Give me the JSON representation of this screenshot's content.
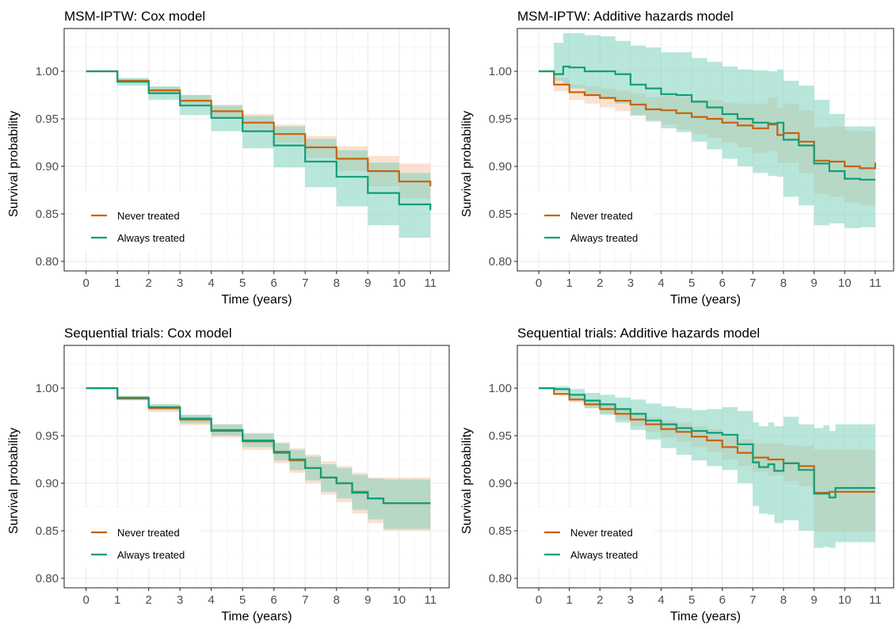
{
  "colors": {
    "never": "#C8620C",
    "always": "#0E9E78",
    "never_band": "#F6C9AC",
    "always_band": "#7FD1BC"
  },
  "chart_data": [
    {
      "type": "line",
      "title": "MSM-IPTW: Cox model",
      "xlabel": "Time (years)",
      "ylabel": "Survival probability",
      "xlim": [
        0,
        11
      ],
      "ylim": [
        0.8,
        1.0
      ],
      "x_ticks": [
        0,
        1,
        2,
        3,
        4,
        5,
        6,
        7,
        8,
        9,
        10,
        11
      ],
      "y_ticks": [
        0.8,
        0.85,
        0.9,
        0.95,
        1.0
      ],
      "y_tick_labels": [
        "0.80",
        "0.85",
        "0.90",
        "0.95",
        "1.00"
      ],
      "grid": true,
      "legend_position": "bottom-left",
      "series": [
        {
          "name": "Never treated",
          "color": "#C8620C",
          "x": [
            0,
            1,
            2,
            3,
            4,
            5,
            6,
            7,
            8,
            9,
            10,
            11
          ],
          "y": [
            1.0,
            0.99,
            0.98,
            0.969,
            0.958,
            0.946,
            0.934,
            0.92,
            0.908,
            0.895,
            0.884,
            0.879
          ],
          "lower": [
            1.0,
            0.988,
            0.977,
            0.964,
            0.952,
            0.939,
            0.925,
            0.909,
            0.895,
            0.879,
            0.866,
            0.857
          ],
          "upper": [
            1.0,
            0.992,
            0.984,
            0.975,
            0.965,
            0.955,
            0.944,
            0.932,
            0.921,
            0.911,
            0.903,
            0.898
          ]
        },
        {
          "name": "Always treated",
          "color": "#0E9E78",
          "x": [
            0,
            1,
            2,
            3,
            4,
            5,
            6,
            7,
            8,
            9,
            10,
            11
          ],
          "y": [
            1.0,
            0.989,
            0.977,
            0.964,
            0.951,
            0.937,
            0.922,
            0.905,
            0.889,
            0.872,
            0.86,
            0.854
          ],
          "lower": [
            1.0,
            0.985,
            0.97,
            0.954,
            0.937,
            0.919,
            0.899,
            0.878,
            0.858,
            0.838,
            0.825,
            0.817
          ],
          "upper": [
            1.0,
            0.993,
            0.984,
            0.975,
            0.964,
            0.953,
            0.942,
            0.929,
            0.917,
            0.904,
            0.893,
            0.888
          ]
        }
      ]
    },
    {
      "type": "line",
      "title": "MSM-IPTW: Additive hazards model",
      "xlabel": "Time (years)",
      "ylabel": "Survival probability",
      "xlim": [
        0,
        11
      ],
      "ylim": [
        0.8,
        1.0
      ],
      "x_ticks": [
        0,
        1,
        2,
        3,
        4,
        5,
        6,
        7,
        8,
        9,
        10,
        11
      ],
      "y_ticks": [
        0.8,
        0.85,
        0.9,
        0.95,
        1.0
      ],
      "y_tick_labels": [
        "0.80",
        "0.85",
        "0.90",
        "0.95",
        "1.00"
      ],
      "grid": true,
      "legend_position": "bottom-left",
      "series": [
        {
          "name": "Never treated",
          "color": "#C8620C",
          "x": [
            0,
            0.5,
            1,
            1.5,
            2,
            2.5,
            3,
            3.5,
            4,
            4.5,
            5,
            5.5,
            6,
            6.5,
            7,
            7.5,
            7.8,
            8,
            8.5,
            9,
            9.5,
            10,
            10.5,
            11
          ],
          "y": [
            1.0,
            0.986,
            0.978,
            0.975,
            0.972,
            0.969,
            0.965,
            0.96,
            0.959,
            0.956,
            0.952,
            0.95,
            0.946,
            0.943,
            0.94,
            0.944,
            0.933,
            0.935,
            0.926,
            0.906,
            0.905,
            0.9,
            0.898,
            0.904
          ],
          "lower": [
            1.0,
            0.979,
            0.97,
            0.966,
            0.962,
            0.958,
            0.953,
            0.947,
            0.944,
            0.939,
            0.934,
            0.93,
            0.925,
            0.92,
            0.914,
            0.916,
            0.904,
            0.904,
            0.893,
            0.871,
            0.868,
            0.862,
            0.859,
            0.86
          ],
          "upper": [
            1.0,
            0.993,
            0.986,
            0.984,
            0.982,
            0.98,
            0.977,
            0.973,
            0.974,
            0.973,
            0.97,
            0.97,
            0.967,
            0.966,
            0.966,
            0.972,
            0.962,
            0.966,
            0.959,
            0.941,
            0.942,
            0.938,
            0.937,
            0.948
          ]
        },
        {
          "name": "Always treated",
          "color": "#0E9E78",
          "x": [
            0,
            0.5,
            0.8,
            1,
            1.5,
            2,
            2.5,
            3,
            3.5,
            4,
            4.5,
            5,
            5.5,
            6,
            6.5,
            7,
            7.5,
            7.8,
            8,
            8.5,
            9,
            9.5,
            10,
            10.5,
            11
          ],
          "y": [
            1.0,
            0.997,
            1.005,
            1.004,
            1.0,
            1.0,
            0.997,
            0.986,
            0.982,
            0.976,
            0.975,
            0.968,
            0.962,
            0.955,
            0.95,
            0.946,
            0.945,
            0.946,
            0.928,
            0.922,
            0.903,
            0.895,
            0.887,
            0.886,
            0.886
          ],
          "lower": [
            1.0,
            0.99,
            0.985,
            0.982,
            0.976,
            0.972,
            0.966,
            0.954,
            0.948,
            0.94,
            0.936,
            0.926,
            0.918,
            0.908,
            0.9,
            0.893,
            0.89,
            0.889,
            0.868,
            0.859,
            0.838,
            0.84,
            0.835,
            0.836,
            0.836
          ],
          "upper": [
            1.0,
            1.03,
            1.04,
            1.04,
            1.038,
            1.037,
            1.032,
            1.027,
            1.025,
            1.02,
            1.02,
            1.014,
            1.01,
            1.005,
            1.002,
            1.001,
            1.0,
            1.002,
            0.99,
            0.985,
            0.97,
            0.955,
            0.942,
            0.942,
            0.946
          ]
        }
      ]
    },
    {
      "type": "line",
      "title": "Sequential trials: Cox model",
      "xlabel": "Time (years)",
      "ylabel": "Survival probability",
      "xlim": [
        0,
        11
      ],
      "ylim": [
        0.8,
        1.0
      ],
      "x_ticks": [
        0,
        1,
        2,
        3,
        4,
        5,
        6,
        7,
        8,
        9,
        10,
        11
      ],
      "y_ticks": [
        0.8,
        0.85,
        0.9,
        0.95,
        1.0
      ],
      "y_tick_labels": [
        "0.80",
        "0.85",
        "0.90",
        "0.95",
        "1.00"
      ],
      "grid": true,
      "legend_position": "bottom-left",
      "series": [
        {
          "name": "Never treated",
          "color": "#C8620C",
          "x": [
            0,
            1,
            2,
            3,
            4,
            5,
            6,
            6.5,
            7,
            7.5,
            8,
            8.5,
            9,
            9.5,
            10,
            11
          ],
          "y": [
            1.0,
            0.989,
            0.979,
            0.967,
            0.955,
            0.944,
            0.932,
            0.924,
            0.916,
            0.906,
            0.9,
            0.891,
            0.884,
            0.879,
            0.879,
            0.879
          ],
          "lower": [
            1.0,
            0.987,
            0.975,
            0.961,
            0.948,
            0.935,
            0.921,
            0.911,
            0.9,
            0.888,
            0.88,
            0.868,
            0.858,
            0.85,
            0.85,
            0.85
          ],
          "upper": [
            1.0,
            0.991,
            0.983,
            0.972,
            0.962,
            0.953,
            0.943,
            0.937,
            0.93,
            0.923,
            0.918,
            0.911,
            0.906,
            0.906,
            0.906,
            0.906
          ]
        },
        {
          "name": "Always treated",
          "color": "#0E9E78",
          "x": [
            0,
            1,
            2,
            3,
            4,
            5,
            6,
            6.5,
            7,
            7.5,
            8,
            8.5,
            9,
            9.5,
            10,
            11
          ],
          "y": [
            1.0,
            0.99,
            0.98,
            0.968,
            0.956,
            0.945,
            0.933,
            0.925,
            0.916,
            0.906,
            0.9,
            0.89,
            0.884,
            0.879,
            0.879,
            0.879
          ],
          "lower": [
            1.0,
            0.988,
            0.977,
            0.963,
            0.95,
            0.938,
            0.924,
            0.914,
            0.903,
            0.891,
            0.884,
            0.872,
            0.862,
            0.852,
            0.852,
            0.852
          ],
          "upper": [
            1.0,
            0.992,
            0.983,
            0.972,
            0.962,
            0.952,
            0.942,
            0.935,
            0.928,
            0.92,
            0.916,
            0.909,
            0.905,
            0.904,
            0.904,
            0.904
          ]
        }
      ]
    },
    {
      "type": "line",
      "title": "Sequential trials: Additive hazards model",
      "xlabel": "Time (years)",
      "ylabel": "Survival probability",
      "xlim": [
        0,
        11
      ],
      "ylim": [
        0.8,
        1.0
      ],
      "x_ticks": [
        0,
        1,
        2,
        3,
        4,
        5,
        6,
        7,
        8,
        9,
        10,
        11
      ],
      "y_ticks": [
        0.8,
        0.85,
        0.9,
        0.95,
        1.0
      ],
      "y_tick_labels": [
        "0.80",
        "0.85",
        "0.90",
        "0.95",
        "1.00"
      ],
      "grid": true,
      "legend_position": "bottom-left",
      "series": [
        {
          "name": "Never treated",
          "color": "#C8620C",
          "x": [
            0,
            0.5,
            1,
            1.5,
            2,
            2.5,
            3,
            3.5,
            4,
            4.5,
            5,
            5.5,
            6,
            6.5,
            7,
            7.5,
            8,
            8.5,
            8.9,
            9,
            9.5,
            10,
            11
          ],
          "y": [
            1.0,
            0.994,
            0.988,
            0.983,
            0.978,
            0.973,
            0.967,
            0.962,
            0.957,
            0.954,
            0.949,
            0.945,
            0.938,
            0.932,
            0.927,
            0.925,
            0.921,
            0.918,
            0.918,
            0.89,
            0.891,
            0.891,
            0.891
          ],
          "lower": [
            1.0,
            0.992,
            0.985,
            0.979,
            0.973,
            0.967,
            0.96,
            0.954,
            0.948,
            0.944,
            0.938,
            0.933,
            0.925,
            0.918,
            0.912,
            0.908,
            0.902,
            0.897,
            0.896,
            0.849,
            0.849,
            0.849,
            0.849
          ],
          "upper": [
            1.0,
            0.996,
            0.991,
            0.987,
            0.983,
            0.979,
            0.974,
            0.97,
            0.966,
            0.964,
            0.96,
            0.957,
            0.951,
            0.946,
            0.942,
            0.942,
            0.94,
            0.939,
            0.94,
            0.935,
            0.935,
            0.935,
            0.935
          ]
        },
        {
          "name": "Always treated",
          "color": "#0E9E78",
          "x": [
            0,
            0.5,
            1,
            1.5,
            2,
            2.5,
            3,
            3.5,
            4,
            4.5,
            5,
            5.5,
            6,
            6.5,
            7,
            7.2,
            7.5,
            7.7,
            8,
            8.5,
            9,
            9.3,
            9.5,
            9.7,
            10,
            11
          ],
          "y": [
            1.0,
            0.999,
            0.993,
            0.987,
            0.983,
            0.978,
            0.973,
            0.966,
            0.962,
            0.958,
            0.955,
            0.953,
            0.951,
            0.941,
            0.922,
            0.917,
            0.92,
            0.913,
            0.921,
            0.914,
            0.889,
            0.889,
            0.885,
            0.895,
            0.895,
            0.895
          ],
          "lower": [
            1.0,
            0.996,
            0.988,
            0.979,
            0.972,
            0.964,
            0.956,
            0.946,
            0.937,
            0.93,
            0.924,
            0.918,
            0.914,
            0.9,
            0.876,
            0.868,
            0.867,
            0.858,
            0.861,
            0.85,
            0.832,
            0.833,
            0.832,
            0.838,
            0.838,
            0.838
          ],
          "upper": [
            1.0,
            1.002,
            0.999,
            0.995,
            0.993,
            0.99,
            0.988,
            0.984,
            0.981,
            0.979,
            0.977,
            0.978,
            0.98,
            0.976,
            0.964,
            0.96,
            0.964,
            0.96,
            0.97,
            0.962,
            0.958,
            0.961,
            0.955,
            0.962,
            0.962,
            0.962
          ]
        }
      ]
    }
  ]
}
